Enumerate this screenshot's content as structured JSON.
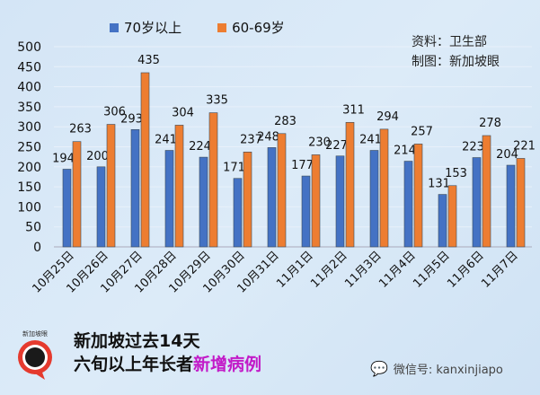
{
  "chart_data": {
    "type": "bar",
    "categories": [
      "10月25日",
      "10月26日",
      "10月27日",
      "10月28日",
      "10月29日",
      "10月30日",
      "10月31日",
      "11月1日",
      "11月2日",
      "11月3日",
      "11月4日",
      "11月5日",
      "11月6日",
      "11月7日"
    ],
    "series": [
      {
        "name": "70岁以上",
        "color": "#4472c4",
        "values": [
          194,
          200,
          293,
          241,
          224,
          171,
          248,
          177,
          227,
          241,
          214,
          131,
          223,
          204
        ]
      },
      {
        "name": "60-69岁",
        "color": "#ed7d31",
        "values": [
          263,
          306,
          435,
          304,
          335,
          237,
          283,
          230,
          311,
          294,
          257,
          153,
          278,
          221
        ]
      }
    ],
    "ylim": [
      0,
      500
    ],
    "yticks": [
      0,
      50,
      100,
      150,
      200,
      250,
      300,
      350,
      400,
      450,
      500
    ],
    "grid": true,
    "legend": "top",
    "data_labels": true
  },
  "source": {
    "line1": "资料：卫生部",
    "line2": "制图：新加坡眼"
  },
  "caption": {
    "line1": "新加坡过去14天",
    "line2_prefix": "六旬以上年长者",
    "line2_highlight": "新增病例"
  },
  "logo_text": "新加坡眼",
  "wechat": "微信号: kanxinjiapo"
}
